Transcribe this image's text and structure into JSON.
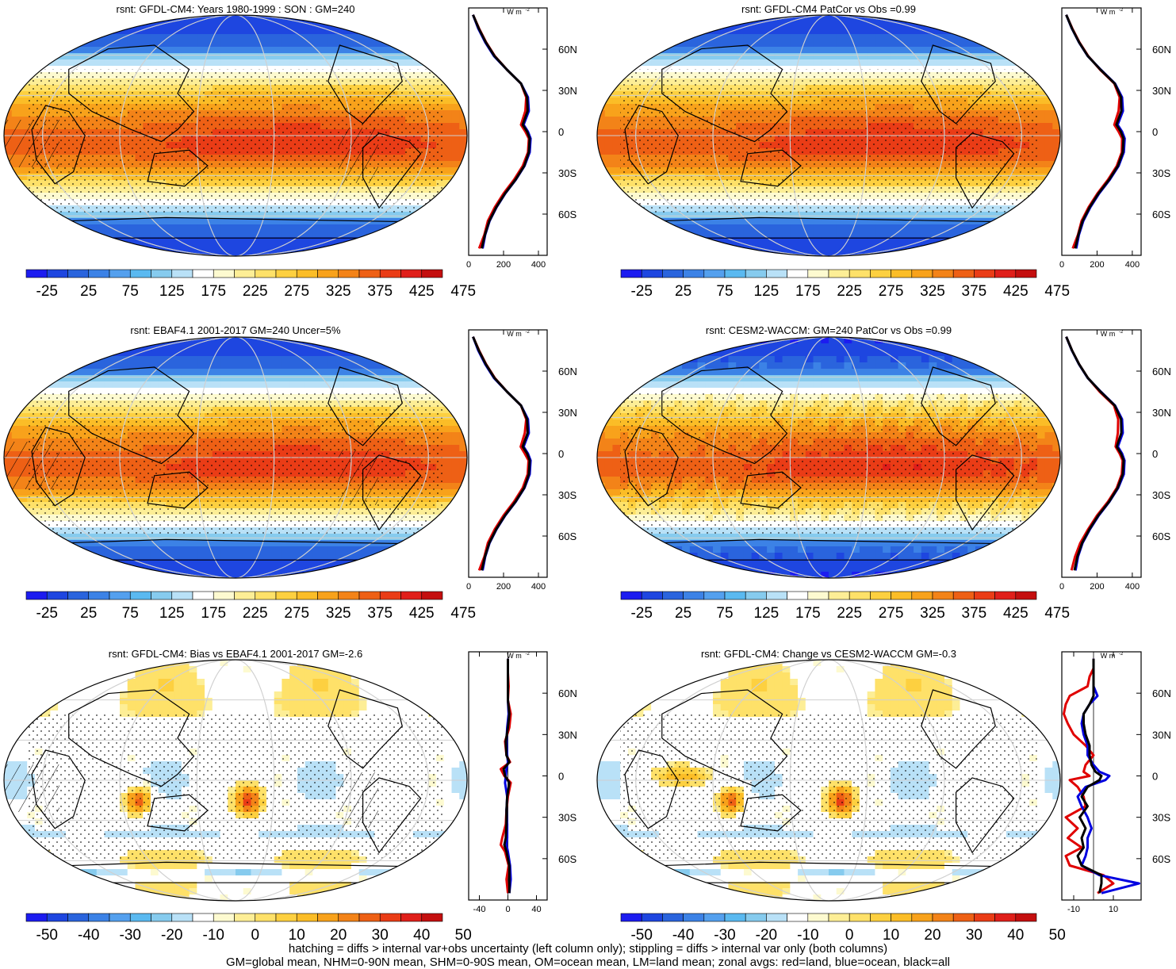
{
  "chart_data": [
    {
      "id": "p1",
      "type": "heatmap",
      "title": "rsnt: GFDL-CM4: Years 1980-1999 : SON : GM=240",
      "colorbar": {
        "colors": [
          "#1c1cf0",
          "#1e46e0",
          "#2a64dd",
          "#3c82e6",
          "#54a0ee",
          "#5ab9f0",
          "#86cbee",
          "#b9e1f7",
          "#ffffff",
          "#fdfad0",
          "#fdee96",
          "#fee169",
          "#fdd040",
          "#fbbd27",
          "#f8a21b",
          "#f38318",
          "#ee6015",
          "#ea3c16",
          "#e01f1a",
          "#c40f0f"
        ],
        "labels": [
          "-25",
          "25",
          "75",
          "125",
          "175",
          "225",
          "275",
          "325",
          "375",
          "425",
          "475"
        ]
      },
      "zonal": {
        "xticks": [
          "0",
          "200",
          "400"
        ],
        "xlim": [
          0,
          450
        ],
        "unit": "W m-2",
        "lat": [
          -85,
          -75,
          -65,
          -55,
          -45,
          -35,
          -25,
          -15,
          -5,
          0,
          5,
          15,
          25,
          35,
          45,
          55,
          65,
          75,
          85
        ],
        "series": [
          {
            "color": "#e00000",
            "values": [
              60,
              90,
              110,
              150,
              200,
              260,
              310,
              340,
              345,
              325,
              300,
              325,
              330,
              300,
              220,
              150,
              100,
              60,
              25
            ]
          },
          {
            "color": "#0000e0",
            "values": [
              80,
              95,
              120,
              160,
              210,
              270,
              320,
              350,
              355,
              340,
              315,
              345,
              340,
              300,
              220,
              145,
              95,
              55,
              25
            ]
          },
          {
            "color": "#000000",
            "values": [
              75,
              93,
              118,
              158,
              208,
              268,
              318,
              345,
              350,
              335,
              310,
              338,
              335,
              300,
              220,
              148,
              98,
              58,
              25
            ]
          }
        ]
      }
    },
    {
      "id": "p2",
      "type": "heatmap",
      "title": "rsnt: GFDL-CM4 PatCor vs Obs =0.99",
      "colorbar": {
        "colors": [
          "#1c1cf0",
          "#1e46e0",
          "#2a64dd",
          "#3c82e6",
          "#54a0ee",
          "#5ab9f0",
          "#86cbee",
          "#b9e1f7",
          "#ffffff",
          "#fdfad0",
          "#fdee96",
          "#fee169",
          "#fdd040",
          "#fbbd27",
          "#f8a21b",
          "#f38318",
          "#ee6015",
          "#ea3c16",
          "#e01f1a",
          "#c40f0f"
        ],
        "labels": [
          "-25",
          "25",
          "75",
          "125",
          "175",
          "225",
          "275",
          "325",
          "375",
          "425",
          "475"
        ]
      },
      "zonal": {
        "xticks": [
          "0",
          "200",
          "400"
        ],
        "xlim": [
          0,
          450
        ],
        "unit": "W m-2",
        "lat": [
          -85,
          -75,
          -65,
          -55,
          -45,
          -35,
          -25,
          -15,
          -5,
          0,
          5,
          15,
          25,
          35,
          45,
          55,
          65,
          75,
          85
        ],
        "series": [
          {
            "color": "#e00000",
            "values": [
              62,
              92,
              112,
              152,
              202,
              262,
              312,
              340,
              342,
              322,
              298,
              322,
              328,
              298,
              218,
              150,
              100,
              60,
              25
            ]
          },
          {
            "color": "#0000e0",
            "values": [
              82,
              97,
              122,
              162,
              212,
              272,
              322,
              352,
              357,
              342,
              317,
              347,
              342,
              302,
              222,
              147,
              97,
              57,
              25
            ]
          },
          {
            "color": "#000000",
            "values": [
              76,
              94,
              118,
              158,
              208,
              268,
              318,
              346,
              350,
              335,
              310,
              338,
              336,
              300,
              220,
              148,
              98,
              58,
              25
            ]
          }
        ]
      }
    },
    {
      "id": "p3",
      "type": "heatmap",
      "title": "rsnt: EBAF4.1 2001-2017 GM=240 Uncer=5%",
      "colorbar": {
        "colors": [
          "#1c1cf0",
          "#1e46e0",
          "#2a64dd",
          "#3c82e6",
          "#54a0ee",
          "#5ab9f0",
          "#86cbee",
          "#b9e1f7",
          "#ffffff",
          "#fdfad0",
          "#fdee96",
          "#fee169",
          "#fdd040",
          "#fbbd27",
          "#f8a21b",
          "#f38318",
          "#ee6015",
          "#ea3c16",
          "#e01f1a",
          "#c40f0f"
        ],
        "labels": [
          "-25",
          "25",
          "75",
          "125",
          "175",
          "225",
          "275",
          "325",
          "375",
          "425",
          "475"
        ]
      },
      "zonal": {
        "xticks": [
          "0",
          "200",
          "400"
        ],
        "xlim": [
          0,
          450
        ],
        "unit": "W m-2",
        "lat": [
          -85,
          -75,
          -65,
          -55,
          -45,
          -35,
          -25,
          -15,
          -5,
          0,
          5,
          15,
          25,
          35,
          45,
          55,
          65,
          75,
          85
        ],
        "series": [
          {
            "color": "#e00000",
            "values": [
              60,
              90,
              110,
              150,
              200,
              260,
              310,
              338,
              343,
              322,
              298,
              322,
              330,
              300,
              220,
              150,
              100,
              60,
              25
            ]
          },
          {
            "color": "#0000e0",
            "values": [
              80,
              95,
              120,
              160,
              210,
              270,
              320,
              350,
              355,
              340,
              315,
              345,
              340,
              300,
              220,
              145,
              95,
              55,
              25
            ]
          },
          {
            "color": "#000000",
            "values": [
              75,
              93,
              118,
              158,
              208,
              268,
              318,
              345,
              350,
              335,
              310,
              338,
              335,
              300,
              220,
              148,
              98,
              58,
              25
            ]
          }
        ]
      }
    },
    {
      "id": "p4",
      "type": "heatmap",
      "title": "rsnt: CESM2-WACCM: GM=240 PatCor vs Obs =0.99",
      "colorbar": {
        "colors": [
          "#1c1cf0",
          "#1e46e0",
          "#2a64dd",
          "#3c82e6",
          "#54a0ee",
          "#5ab9f0",
          "#86cbee",
          "#b9e1f7",
          "#ffffff",
          "#fdfad0",
          "#fdee96",
          "#fee169",
          "#fdd040",
          "#fbbd27",
          "#f8a21b",
          "#f38318",
          "#ee6015",
          "#ea3c16",
          "#e01f1a",
          "#c40f0f"
        ],
        "labels": [
          "-25",
          "25",
          "75",
          "125",
          "175",
          "225",
          "275",
          "325",
          "375",
          "425",
          "475"
        ]
      },
      "zonal": {
        "xticks": [
          "0",
          "200",
          "400"
        ],
        "xlim": [
          0,
          450
        ],
        "unit": "W m-2",
        "lat": [
          -85,
          -75,
          -65,
          -55,
          -45,
          -35,
          -25,
          -15,
          -5,
          0,
          5,
          15,
          25,
          35,
          45,
          55,
          65,
          75,
          85
        ],
        "series": [
          {
            "color": "#e00000",
            "values": [
              55,
              75,
              105,
              150,
              200,
              262,
              312,
              340,
              345,
              328,
              305,
              318,
              320,
              296,
              215,
              148,
              98,
              58,
              25
            ]
          },
          {
            "color": "#0000e0",
            "values": [
              78,
              92,
              118,
              160,
              210,
              270,
              320,
              352,
              356,
              342,
              318,
              346,
              342,
              302,
              222,
              147,
              97,
              57,
              25
            ]
          },
          {
            "color": "#000000",
            "values": [
              72,
              88,
              115,
              157,
              207,
              268,
              317,
              346,
              351,
              336,
              312,
              338,
              336,
              300,
              220,
              148,
              98,
              58,
              25
            ]
          }
        ]
      }
    },
    {
      "id": "p5",
      "type": "heatmap",
      "title": "rsnt: GFDL-CM4: Bias vs EBAF4.1 2001-2017  GM=-2.6",
      "colorbar": {
        "colors": [
          "#1c1cf0",
          "#1e46e0",
          "#2a64dd",
          "#3c82e6",
          "#54a0ee",
          "#5ab9f0",
          "#86cbee",
          "#b9e1f7",
          "#ffffff",
          "#fdfad0",
          "#fdee96",
          "#fee169",
          "#fdd040",
          "#fbbd27",
          "#f8a21b",
          "#f38318",
          "#ee6015",
          "#ea3c16",
          "#e01f1a",
          "#c40f0f"
        ],
        "labels": [
          "-50",
          "-40",
          "-30",
          "-20",
          "-10",
          "0",
          "10",
          "20",
          "30",
          "40",
          "50"
        ]
      },
      "zonal": {
        "xticks": [
          "-40",
          "0",
          "40"
        ],
        "xlim": [
          -55,
          55
        ],
        "unit": "W m-2",
        "lat": [
          -85,
          -75,
          -65,
          -55,
          -50,
          -45,
          -35,
          -25,
          -15,
          -5,
          0,
          5,
          10,
          15,
          25,
          35,
          45,
          55,
          65,
          75,
          85
        ],
        "series": [
          {
            "color": "#e00000",
            "values": [
              0,
              -2,
              1,
              -4,
              -10,
              -8,
              -3,
              -2,
              0,
              4,
              -5,
              -10,
              3,
              -2,
              -4,
              2,
              4,
              0,
              1,
              0,
              0
            ]
          },
          {
            "color": "#0000e0",
            "values": [
              2,
              4,
              3,
              0,
              -2,
              -1,
              -1,
              -2,
              -1,
              -4,
              -3,
              -2,
              0,
              -1,
              -2,
              -1,
              1,
              0,
              0,
              0,
              0
            ]
          },
          {
            "color": "#000000",
            "values": [
              2,
              2,
              2,
              -2,
              -5,
              -3,
              -2,
              -2,
              -1,
              2,
              -4,
              -6,
              2,
              -2,
              -3,
              0,
              2,
              0,
              0,
              0,
              0
            ]
          }
        ]
      }
    },
    {
      "id": "p6",
      "type": "heatmap",
      "title": "rsnt: GFDL-CM4: Change vs CESM2-WACCM GM=-0.3",
      "colorbar": {
        "colors": [
          "#1c1cf0",
          "#1e46e0",
          "#2a64dd",
          "#3c82e6",
          "#54a0ee",
          "#5ab9f0",
          "#86cbee",
          "#b9e1f7",
          "#ffffff",
          "#fdfad0",
          "#fdee96",
          "#fee169",
          "#fdd040",
          "#fbbd27",
          "#f8a21b",
          "#f38318",
          "#ee6015",
          "#ea3c16",
          "#e01f1a",
          "#c40f0f"
        ],
        "labels": [
          "-50",
          "-40",
          "-30",
          "-20",
          "-10",
          "0",
          "10",
          "20",
          "30",
          "40",
          "50"
        ]
      },
      "zonal": {
        "xticks": [
          "-10",
          "10"
        ],
        "xlim": [
          -16,
          24
        ],
        "unit": "W m-2",
        "lat": [
          -85,
          -78,
          -72,
          -65,
          -58,
          -52,
          -45,
          -38,
          -30,
          -22,
          -15,
          -8,
          -3,
          0,
          3,
          8,
          15,
          22,
          30,
          38,
          45,
          52,
          58,
          65,
          72,
          78,
          85
        ],
        "series": [
          {
            "color": "#e00000",
            "values": [
              2,
              10,
              5,
              -12,
              -14,
              -6,
              -13,
              -8,
              -14,
              -4,
              -5,
              -8,
              -12,
              -2,
              -5,
              -4,
              0,
              -4,
              -10,
              -13,
              -15,
              -14,
              -12,
              -3,
              -2,
              0,
              0
            ]
          },
          {
            "color": "#0000e0",
            "values": [
              4,
              23,
              3,
              -6,
              -4,
              -3,
              -3,
              -1,
              -3,
              -6,
              -8,
              -4,
              6,
              8,
              3,
              0,
              -3,
              -3,
              -5,
              -6,
              -5,
              -2,
              2,
              0,
              0,
              0,
              0
            ]
          },
          {
            "color": "#000000",
            "values": [
              3,
              4,
              4,
              -6,
              -8,
              -5,
              -6,
              -4,
              -7,
              -3,
              -6,
              -3,
              3,
              4,
              1,
              -1,
              -2,
              -2,
              -4,
              -5,
              -5,
              -2,
              0,
              0,
              0,
              0,
              0
            ]
          }
        ]
      }
    }
  ],
  "zonal_lat_labels": [
    {
      "lat": 60,
      "label": "60N"
    },
    {
      "lat": 30,
      "label": "30N"
    },
    {
      "lat": 0,
      "label": "0"
    },
    {
      "lat": -30,
      "label": "30S"
    },
    {
      "lat": -60,
      "label": "60S"
    }
  ],
  "footer": {
    "line1": "hatching = diffs > internal var+obs uncertainty (left column only); stippling = diffs > internal var only (both columns)",
    "line2": "GM=global mean, NHM=0-90N mean, SHM=0-90S mean, OM=ocean mean, LM=land mean; zonal avgs: red=land, blue=ocean, black=all"
  }
}
